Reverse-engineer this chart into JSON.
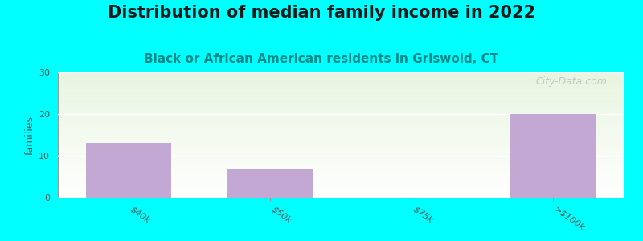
{
  "title": "Distribution of median family income in 2022",
  "subtitle": "Black or African American residents in Griswold, CT",
  "categories": [
    "$40k",
    "$50k",
    "$75k",
    ">$100k"
  ],
  "values": [
    13,
    7,
    0,
    20
  ],
  "bar_color": "#c4a8d4",
  "background_color": "#00ffff",
  "plot_bg_top": "#e8f5e0",
  "plot_bg_bottom": "#ffffff",
  "ylabel": "families",
  "ylim": [
    0,
    30
  ],
  "yticks": [
    0,
    10,
    20,
    30
  ],
  "title_fontsize": 15,
  "title_color": "#1a1a1a",
  "subtitle_fontsize": 11,
  "subtitle_color": "#008888",
  "watermark": "City-Data.com",
  "bar_width": 0.6,
  "tick_color": "#555555",
  "tick_fontsize": 8,
  "ylabel_fontsize": 9,
  "ylabel_color": "#555555"
}
